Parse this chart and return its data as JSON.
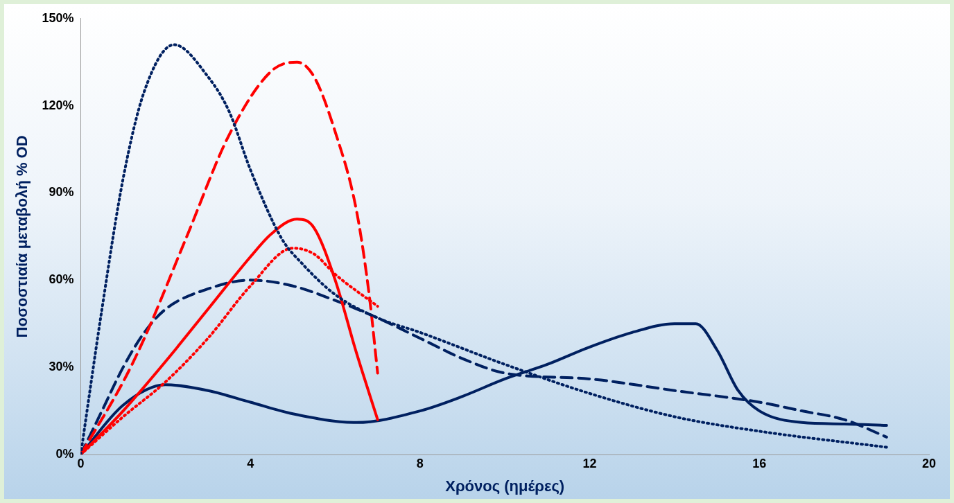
{
  "chart_data": {
    "type": "line",
    "xlabel": "Χρόνος (ημέρες)",
    "ylabel": "Ποσοστιαία μεταβολή % OD",
    "xlim": [
      0,
      20
    ],
    "xticks": [
      0,
      4,
      8,
      12,
      16,
      20
    ],
    "ylim": [
      0,
      150
    ],
    "yticks": [
      {
        "value": 0,
        "label": "0%"
      },
      {
        "value": 30,
        "label": "30%"
      },
      {
        "value": 60,
        "label": "60%"
      },
      {
        "value": 90,
        "label": "90%"
      },
      {
        "value": 120,
        "label": "120%"
      },
      {
        "value": 150,
        "label": "150%"
      }
    ],
    "grid": false,
    "legend": false,
    "marker": "none",
    "series": [
      {
        "color": "#002060",
        "line_style": "dotted",
        "x": [
          0,
          0.5,
          1,
          1.5,
          2.2,
          3,
          3.5,
          4,
          4.75,
          5.2,
          6,
          7,
          8,
          10,
          12,
          14,
          16,
          19
        ],
        "values": [
          0,
          50,
          95,
          125,
          141,
          130,
          118,
          98,
          74,
          66,
          55,
          47,
          42,
          31,
          21,
          13,
          8,
          2.5
        ]
      },
      {
        "color": "#ff0000",
        "line_style": "dashed",
        "x": [
          0,
          1,
          1.5,
          2.5,
          3.5,
          4.5,
          5.1,
          5.5,
          6,
          6.5,
          6.8,
          7
        ],
        "values": [
          0,
          25,
          40,
          75,
          110,
          132,
          135,
          130,
          111,
          84,
          55,
          28
        ]
      },
      {
        "color": "#ff0000",
        "line_style": "solid",
        "x": [
          0,
          1,
          2,
          3,
          4,
          4.5,
          5.1,
          5.5,
          6,
          6.5,
          7
        ],
        "values": [
          0,
          15,
          32,
          50,
          68,
          76,
          81,
          78,
          60,
          35,
          12
        ]
      },
      {
        "color": "#ff0000",
        "line_style": "dotted",
        "x": [
          0,
          1,
          2,
          3,
          4,
          5,
          5.5,
          6,
          7
        ],
        "values": [
          0,
          13,
          25,
          40,
          58,
          71,
          69,
          62,
          51
        ]
      },
      {
        "color": "#002060",
        "line_style": "dashed",
        "x": [
          0,
          0.5,
          1,
          1.5,
          2,
          3,
          4,
          5,
          6,
          7,
          8,
          9,
          10,
          12,
          14,
          16,
          17,
          18,
          19
        ],
        "values": [
          0,
          15,
          30,
          42,
          50,
          57,
          60,
          58,
          53,
          47,
          40,
          33,
          28,
          26,
          22,
          18,
          15,
          12,
          6
        ]
      },
      {
        "color": "#002060",
        "line_style": "solid",
        "x": [
          0,
          1,
          2,
          3,
          4,
          5,
          6.5,
          8,
          9,
          10,
          11,
          12,
          13,
          14,
          14.5,
          15,
          15.5,
          16,
          17,
          18,
          19
        ],
        "values": [
          0,
          17,
          24,
          22,
          18,
          14,
          11,
          15,
          20,
          26,
          31,
          37,
          42,
          45,
          45,
          36,
          22,
          15,
          11,
          10.5,
          10
        ]
      }
    ]
  }
}
